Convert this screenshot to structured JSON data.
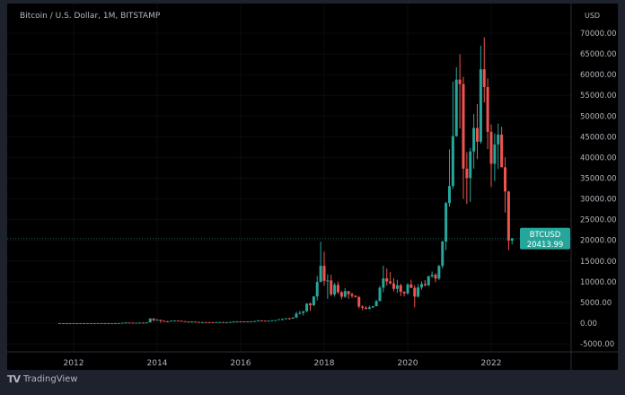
{
  "header": {
    "title": "Bitcoin / U.S. Dollar, 1M, BITSTAMP",
    "currency": "USD"
  },
  "footer": {
    "brand": "TradingView"
  },
  "colors": {
    "up": "#26a69a",
    "down": "#ef5350",
    "background": "#000000",
    "frame": "#1e222d",
    "axis_text": "#b2b5be"
  },
  "chart_data": {
    "type": "candlestick",
    "title": "Bitcoin / U.S. Dollar, 1M, BITSTAMP",
    "interval": "1M",
    "ylim": [
      -7000,
      72000
    ],
    "y_ticks": [
      "70000.00",
      "65000.00",
      "60000.00",
      "55000.00",
      "50000.00",
      "45000.00",
      "40000.00",
      "35000.00",
      "30000.00",
      "25000.00",
      "20000.00",
      "15000.00",
      "10000.00",
      "5000.00",
      "0.00",
      "-5000.00"
    ],
    "y_tick_values": [
      70000,
      65000,
      60000,
      55000,
      50000,
      45000,
      40000,
      35000,
      30000,
      25000,
      20000,
      15000,
      10000,
      5000,
      0,
      -5000
    ],
    "x_ticks": [
      "2012",
      "2014",
      "2016",
      "2018",
      "2020",
      "2022"
    ],
    "start_month": "2011-09",
    "grid": true,
    "last_price": {
      "symbol": "BTCUSD",
      "value": "20413.99",
      "price": 20413.99
    },
    "ohlc": [
      [
        5,
        5.7,
        4.2,
        5.1
      ],
      [
        5.1,
        5.2,
        2.2,
        3.2
      ],
      [
        3.2,
        3.5,
        2,
        3
      ],
      [
        3,
        4.6,
        2.8,
        4.7
      ],
      [
        4.7,
        7.4,
        4.5,
        5.5
      ],
      [
        5.5,
        6.2,
        4.3,
        4.9
      ],
      [
        4.9,
        5.4,
        4.6,
        4.9
      ],
      [
        4.9,
        5.3,
        4.7,
        5
      ],
      [
        5,
        5.2,
        4.9,
        5.2
      ],
      [
        5.2,
        6.7,
        5.2,
        6.7
      ],
      [
        6.7,
        9.5,
        6.5,
        9.4
      ],
      [
        9.4,
        15.4,
        7,
        10.2
      ],
      [
        10.2,
        12.9,
        9.9,
        12.4
      ],
      [
        12.4,
        12.9,
        9.9,
        11.2
      ],
      [
        11.2,
        12.6,
        10.4,
        12.6
      ],
      [
        12.6,
        13.9,
        12.6,
        13.5
      ],
      [
        13.5,
        20.8,
        13.3,
        20.4
      ],
      [
        20.4,
        33.5,
        19.1,
        33.4
      ],
      [
        33.4,
        95,
        33.2,
        93
      ],
      [
        93,
        266,
        50,
        139
      ],
      [
        139,
        140,
        79,
        129
      ],
      [
        129,
        129,
        65,
        97
      ],
      [
        97,
        112,
        65,
        106
      ],
      [
        106,
        140,
        99,
        135
      ],
      [
        135,
        145,
        117,
        124
      ],
      [
        124,
        215,
        95,
        204
      ],
      [
        204,
        1163,
        204,
        1131
      ],
      [
        1131,
        1175,
        400,
        732
      ],
      [
        732,
        1000,
        734,
        820
      ],
      [
        808,
        830,
        111,
        555
      ],
      [
        555,
        715,
        420,
        450
      ],
      [
        450,
        550,
        340,
        447
      ],
      [
        447,
        634,
        420,
        628
      ],
      [
        628,
        680,
        540,
        640
      ],
      [
        640,
        650,
        565,
        588
      ],
      [
        588,
        600,
        450,
        480
      ],
      [
        480,
        490,
        350,
        386
      ],
      [
        386,
        420,
        275,
        338
      ],
      [
        338,
        460,
        310,
        379
      ],
      [
        379,
        390,
        300,
        320
      ],
      [
        320,
        320,
        152,
        218
      ],
      [
        218,
        270,
        208,
        254
      ],
      [
        254,
        300,
        235,
        244
      ],
      [
        244,
        261,
        210,
        236
      ],
      [
        236,
        247,
        225,
        230
      ],
      [
        230,
        268,
        220,
        263
      ],
      [
        263,
        316,
        254,
        284
      ],
      [
        284,
        286,
        162,
        230
      ],
      [
        230,
        248,
        225,
        236
      ],
      [
        236,
        335,
        235,
        314
      ],
      [
        314,
        502,
        300,
        378
      ],
      [
        378,
        469,
        345,
        430
      ],
      [
        430,
        465,
        355,
        368
      ],
      [
        368,
        446,
        365,
        437
      ],
      [
        437,
        440,
        391,
        416
      ],
      [
        416,
        467,
        412,
        448
      ],
      [
        448,
        550,
        438,
        532
      ],
      [
        532,
        780,
        525,
        670
      ],
      [
        670,
        690,
        580,
        624
      ],
      [
        624,
        628,
        470,
        574
      ],
      [
        574,
        630,
        566,
        609
      ],
      [
        609,
        720,
        603,
        700
      ],
      [
        700,
        755,
        680,
        742
      ],
      [
        742,
        980,
        740,
        966
      ],
      [
        966,
        1150,
        750,
        970
      ],
      [
        970,
        1215,
        930,
        1190
      ],
      [
        1190,
        1290,
        890,
        1080
      ],
      [
        1080,
        1400,
        1060,
        1350
      ],
      [
        1350,
        2760,
        1350,
        2300
      ],
      [
        2300,
        3000,
        2100,
        2480
      ],
      [
        2480,
        2950,
        1830,
        2870
      ],
      [
        2870,
        4750,
        2690,
        4730
      ],
      [
        4730,
        4980,
        2970,
        4340
      ],
      [
        4340,
        6470,
        4100,
        6460
      ],
      [
        6460,
        11400,
        5500,
        9950
      ],
      [
        9950,
        19670,
        9900,
        13850
      ],
      [
        13850,
        17250,
        9050,
        10220
      ],
      [
        10220,
        11800,
        5880,
        10320
      ],
      [
        10320,
        11700,
        6550,
        6920
      ],
      [
        6920,
        9750,
        6420,
        9240
      ],
      [
        9240,
        9990,
        7030,
        7490
      ],
      [
        7490,
        7760,
        5760,
        6390
      ],
      [
        6390,
        8480,
        6100,
        7730
      ],
      [
        7730,
        7760,
        5880,
        7010
      ],
      [
        7010,
        7410,
        6100,
        6610
      ],
      [
        6610,
        6750,
        6200,
        6300
      ],
      [
        6300,
        6540,
        3570,
        4020
      ],
      [
        4020,
        4310,
        3130,
        3740
      ],
      [
        3740,
        4070,
        3370,
        3450
      ],
      [
        3450,
        4200,
        3370,
        3810
      ],
      [
        3810,
        4130,
        3690,
        4100
      ],
      [
        4100,
        5630,
        4080,
        5320
      ],
      [
        5320,
        9000,
        5330,
        8560
      ],
      [
        8560,
        13880,
        7460,
        10820
      ],
      [
        10820,
        13200,
        9070,
        10080
      ],
      [
        10080,
        12330,
        9400,
        9590
      ],
      [
        9590,
        10900,
        7700,
        8290
      ],
      [
        8290,
        10500,
        7300,
        9150
      ],
      [
        9150,
        9520,
        6520,
        7550
      ],
      [
        7550,
        7750,
        6440,
        7190
      ],
      [
        7190,
        9580,
        6850,
        9350
      ],
      [
        9350,
        10500,
        8460,
        8540
      ],
      [
        8540,
        9190,
        3850,
        6410
      ],
      [
        6410,
        9460,
        6160,
        8630
      ],
      [
        8630,
        10080,
        8110,
        9450
      ],
      [
        9450,
        10380,
        8890,
        9140
      ],
      [
        9140,
        11440,
        8990,
        11350
      ],
      [
        11350,
        12480,
        10970,
        11680
      ],
      [
        11680,
        12070,
        9880,
        10780
      ],
      [
        10780,
        14100,
        10420,
        13800
      ],
      [
        13800,
        19880,
        13210,
        19700
      ],
      [
        19700,
        29300,
        17600,
        28990
      ],
      [
        28990,
        41950,
        28130,
        33110
      ],
      [
        33110,
        58350,
        32400,
        45160
      ],
      [
        45160,
        61780,
        45000,
        58800
      ],
      [
        58800,
        64900,
        47000,
        57700
      ],
      [
        57700,
        59500,
        30000,
        37300
      ],
      [
        37300,
        41300,
        28800,
        35040
      ],
      [
        35040,
        42300,
        29300,
        41460
      ],
      [
        41460,
        50500,
        37300,
        47130
      ],
      [
        47130,
        52900,
        39600,
        43820
      ],
      [
        43820,
        67000,
        43300,
        61300
      ],
      [
        61300,
        69000,
        53300,
        57000
      ],
      [
        57000,
        59100,
        42000,
        46200
      ],
      [
        46200,
        47990,
        32900,
        38480
      ],
      [
        38480,
        45800,
        34300,
        43160
      ],
      [
        43160,
        48200,
        37200,
        45530
      ],
      [
        45530,
        47400,
        37600,
        37640
      ],
      [
        37640,
        40000,
        26700,
        31800
      ],
      [
        31800,
        31900,
        17600,
        19930
      ],
      [
        19930,
        20600,
        19000,
        20414
      ]
    ]
  }
}
